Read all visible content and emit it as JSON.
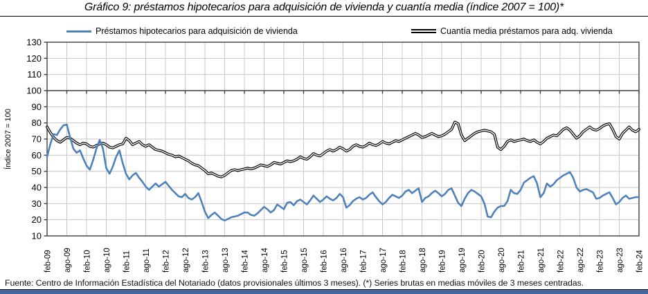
{
  "title": "Gráfico 9: préstamos hipotecarios para adquisición de vivienda y cuantía media (índice 2007 = 100)*",
  "footer": "Fuente: Centro de Información Estadística del Notariado (datos provisionales últimos 3 meses). (*) Series brutas en medias móviles de 3 meses centradas.",
  "colors": {
    "series_blue": "#4F81BD",
    "series_black": "#000000",
    "grid_light": "#c8c8c8",
    "axis_dark": "#3f3f3f",
    "accent_bar": "#44679B"
  },
  "legend": [
    {
      "label": "Préstamos hipotecarios para adquisición de vivienda",
      "swatch": "blue-line-icon"
    },
    {
      "label": "Cuantía media préstamos para adq. vivienda",
      "swatch": "black-double-line-icon"
    }
  ],
  "chart_data": {
    "type": "line",
    "title": "Gráfico 9: préstamos hipotecarios para adquisición de vivienda y cuantía media (índice 2007 = 100)*",
    "y_axis_title": "Índice 2007 = 100",
    "ylim": [
      10,
      130
    ],
    "y_tick_step": 10,
    "y_tick_labels": [
      "10",
      "20",
      "30",
      "40",
      "50",
      "60",
      "70",
      "80",
      "90",
      "100",
      "110",
      "120",
      "130"
    ],
    "axis_cross_value": 100,
    "grid": true,
    "legend_position": "top",
    "x_interval": "monthly",
    "x_start": "feb-09",
    "x_end": "feb-24",
    "months_total": 181,
    "x_tick_every_months": 6,
    "x_tick_labels": [
      "feb-09",
      "ago-09",
      "feb-10",
      "ago-10",
      "feb-11",
      "ago-11",
      "feb-12",
      "ago-12",
      "feb-13",
      "ago-13",
      "feb-14",
      "ago-14",
      "feb-15",
      "ago-15",
      "feb-16",
      "ago-16",
      "feb-17",
      "ago-17",
      "feb-18",
      "ago-18",
      "feb-19",
      "ago-19",
      "feb-20",
      "ago-20",
      "feb-21",
      "ago-21",
      "feb-22",
      "ago-22",
      "feb-23",
      "ago-23",
      "feb-24"
    ],
    "series": [
      {
        "name": "Préstamos hipotecarios para adquisición de vivienda",
        "color": "#4F81BD",
        "line_style": "solid",
        "values": [
          59,
          67,
          73,
          72.5,
          76,
          78.5,
          79,
          71,
          64,
          61.5,
          63,
          58,
          53.5,
          51,
          57,
          64,
          69.5,
          64,
          52,
          48.5,
          53,
          59,
          63,
          55,
          48.5,
          45,
          47.5,
          49,
          46,
          43.5,
          40.5,
          38.5,
          40.5,
          42.5,
          40.5,
          42,
          43.5,
          41,
          38.5,
          36.5,
          34.5,
          34,
          36,
          33.5,
          32.5,
          34,
          36.5,
          31,
          25,
          21,
          23,
          24.5,
          22.5,
          20.5,
          19.5,
          20.5,
          21.5,
          22,
          22.5,
          23.5,
          24.5,
          24.5,
          23,
          22.5,
          24,
          26,
          28,
          26.5,
          24.5,
          26,
          29.5,
          28,
          26.5,
          30.5,
          31,
          29,
          31.5,
          32.5,
          31,
          29.5,
          32,
          35,
          33,
          31,
          32.5,
          34.5,
          33,
          32,
          33.5,
          36,
          34,
          27.5,
          29,
          31.5,
          33,
          34,
          32.5,
          33.5,
          35.5,
          37,
          34,
          31.5,
          29.5,
          31,
          33.5,
          35.5,
          34.5,
          33.5,
          35,
          37.5,
          38.5,
          36.5,
          38,
          39.5,
          31,
          33.5,
          34.5,
          36.5,
          38,
          36.5,
          34.5,
          36,
          38.5,
          39.5,
          35,
          30.5,
          28.5,
          33,
          36.5,
          38.5,
          37.5,
          36,
          34.5,
          30,
          22,
          21.5,
          25,
          27.5,
          28.5,
          28.5,
          31.5,
          38.5,
          36.5,
          36,
          38.5,
          43,
          44.5,
          46,
          47,
          42.5,
          34,
          36.5,
          42.5,
          40.5,
          42,
          44.5,
          46,
          47.5,
          48.5,
          49.5,
          46,
          40,
          37.5,
          38.5,
          39,
          38,
          37,
          33,
          33.5,
          35,
          36,
          37,
          33.5,
          29.5,
          31,
          33.5,
          35,
          33,
          33.5,
          34,
          34
        ]
      },
      {
        "name": "Cuantía media préstamos para adq. vivienda",
        "color": "#000000",
        "line_style": "double",
        "values": [
          77.5,
          74,
          71,
          69,
          68,
          69.5,
          71,
          70.5,
          69,
          67.5,
          66.5,
          67.5,
          67,
          65.5,
          65,
          66,
          67,
          67.5,
          66.5,
          65,
          64.5,
          65.5,
          66.5,
          67,
          70.5,
          69,
          66.5,
          67.5,
          68.5,
          66.5,
          65.5,
          66.5,
          65,
          63.5,
          63,
          62.5,
          61.5,
          60.5,
          60,
          59,
          59.5,
          58.5,
          57.5,
          56.5,
          55,
          54,
          53.5,
          52,
          50.5,
          48.5,
          49,
          48,
          47,
          46.5,
          47.5,
          49,
          50.5,
          51,
          50.5,
          51,
          51.5,
          52,
          51.5,
          52,
          53,
          54,
          53.5,
          53,
          54,
          55.5,
          55,
          54.5,
          55.5,
          56.5,
          56,
          56.5,
          57.5,
          59,
          58,
          57.5,
          59,
          61,
          60,
          59.5,
          61,
          62.5,
          63.5,
          62.5,
          63.5,
          65,
          64,
          62.5,
          63.5,
          65.5,
          66.5,
          65.5,
          65,
          66,
          67.5,
          66.5,
          66,
          67,
          68.5,
          67.5,
          67,
          68,
          69,
          68.5,
          69.5,
          70.5,
          71.5,
          72.5,
          73.5,
          72.5,
          71,
          71.5,
          72.5,
          73.5,
          72.5,
          71.5,
          72,
          73,
          74.5,
          76,
          80.5,
          79.5,
          72.5,
          69,
          70.5,
          72,
          73.5,
          74.5,
          75,
          75.5,
          75,
          74.5,
          73,
          65,
          63.5,
          65.5,
          68.5,
          69.5,
          68.5,
          69,
          69.5,
          70,
          69,
          68.5,
          69.5,
          68,
          67,
          68.5,
          70.5,
          71.5,
          72.5,
          72,
          74,
          76,
          77,
          75.5,
          73,
          70.5,
          72,
          74.5,
          76,
          77.5,
          76,
          75.5,
          76.5,
          78,
          79,
          79.5,
          76,
          71.5,
          70,
          73.5,
          75.5,
          77.5,
          75.5,
          74.5,
          76
        ]
      }
    ]
  }
}
